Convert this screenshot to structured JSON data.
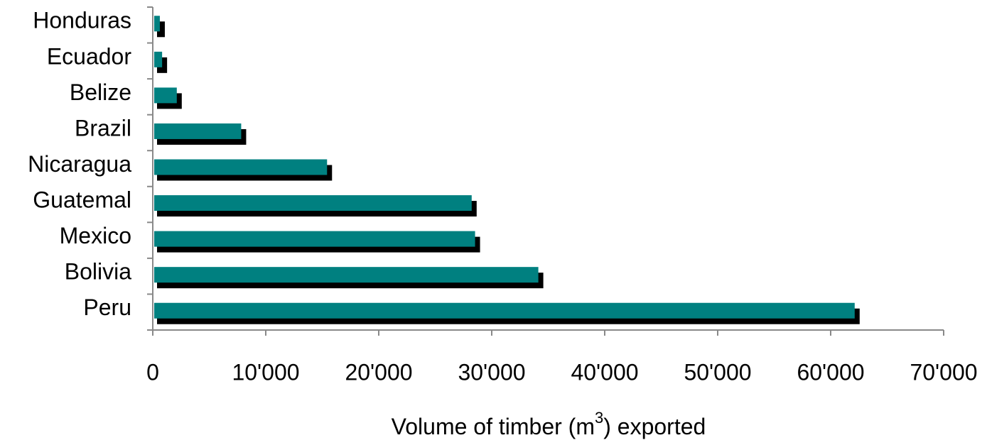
{
  "chart_data": {
    "type": "bar",
    "orientation": "horizontal",
    "xlabel": [
      "Volume of timber (m",
      "3",
      ") exported"
    ],
    "categories": [
      "Honduras",
      "Ecuador",
      "Belize",
      "Brazil",
      "Nicaragua",
      "Guatemal",
      "Mexico",
      "Bolivia",
      "Peru"
    ],
    "values": [
      500,
      700,
      2000,
      7700,
      15300,
      28100,
      28400,
      34000,
      62000
    ],
    "color": "#008080",
    "shadow_color": "#000000",
    "xlim": [
      0,
      70000
    ],
    "xticks": [
      0,
      {
        "value": 10000,
        "label": "10'000"
      },
      {
        "value": 20000,
        "label": "20'000"
      },
      {
        "value": 30000,
        "label": "30'000"
      },
      {
        "value": 40000,
        "label": "40'000"
      },
      {
        "value": 50000,
        "label": "50'000"
      },
      {
        "value": 60000,
        "label": "60'000"
      },
      {
        "value": 70000,
        "label": "70'000"
      }
    ],
    "grid": false
  }
}
